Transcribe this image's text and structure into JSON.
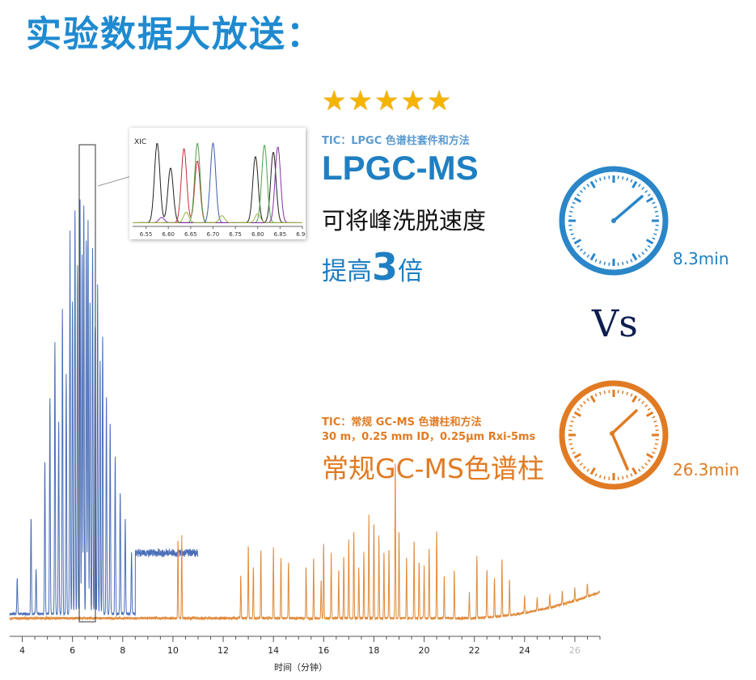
{
  "title": "实验数据大放送：",
  "rating_stars": "★★★★★",
  "lpgc": {
    "caption": "TIC：LPGC 色谱柱套件和方法",
    "heading": "LPGC-MS",
    "line1": "可将峰洗脱速度",
    "line2_prefix": "提高",
    "line2_number": "3",
    "line2_suffix": "倍",
    "time": "8.3min",
    "color": "#1f7fc2"
  },
  "vs": "Vs",
  "standard": {
    "caption1": "TIC：常规 GC-MS 色谱柱和方法",
    "caption2": "30 m，0.25 mm ID，0.25µm Rxi-5ms",
    "heading": "常规GC-MS色谱柱",
    "time": "26.3min",
    "color": "#e07b23"
  },
  "icons": [
    "star-icon",
    "clock-icon"
  ],
  "chart_data": [
    {
      "type": "line",
      "xlabel": "时间（分钟）",
      "ylabel": "",
      "xlim": [
        3.5,
        27
      ],
      "ylim": [
        0,
        100
      ],
      "x_ticks": [
        "4",
        "6",
        "8",
        "10",
        "12",
        "14",
        "16",
        "18",
        "20",
        "22",
        "24",
        "26"
      ],
      "grid": false,
      "series": [
        {
          "color": "#4a6fb8",
          "baseline": 2,
          "end": 11.0,
          "peaks": [
            [
              3.8,
              8
            ],
            [
              4.35,
              22
            ],
            [
              4.55,
              10
            ],
            [
              4.9,
              35
            ],
            [
              5.1,
              50
            ],
            [
              5.3,
              62
            ],
            [
              5.45,
              44
            ],
            [
              5.6,
              70
            ],
            [
              5.75,
              55
            ],
            [
              5.9,
              88
            ],
            [
              6.0,
              72
            ],
            [
              6.1,
              93
            ],
            [
              6.2,
              80
            ],
            [
              6.3,
              96
            ],
            [
              6.38,
              82
            ],
            [
              6.45,
              94
            ],
            [
              6.55,
              86
            ],
            [
              6.62,
              90
            ],
            [
              6.7,
              72
            ],
            [
              6.8,
              84
            ],
            [
              6.9,
              66
            ],
            [
              7.0,
              76
            ],
            [
              7.1,
              58
            ],
            [
              7.2,
              64
            ],
            [
              7.35,
              50
            ],
            [
              7.5,
              44
            ],
            [
              7.7,
              36
            ],
            [
              7.9,
              28
            ],
            [
              8.1,
              22
            ],
            [
              8.35,
              14
            ]
          ],
          "plateau_start": 8.5,
          "plateau_level": 14
        },
        {
          "color": "#e08a3a",
          "baseline": 1,
          "end": 27.0,
          "peaks": [
            [
              10.2,
              18
            ],
            [
              10.35,
              19
            ],
            [
              12.7,
              10
            ],
            [
              13.0,
              17
            ],
            [
              13.2,
              12
            ],
            [
              13.5,
              16
            ],
            [
              14.0,
              16
            ],
            [
              14.3,
              14
            ],
            [
              14.6,
              13
            ],
            [
              15.3,
              12
            ],
            [
              15.6,
              14
            ],
            [
              15.9,
              9
            ],
            [
              16.0,
              17
            ],
            [
              16.3,
              15
            ],
            [
              16.6,
              11
            ],
            [
              16.8,
              14
            ],
            [
              17.0,
              18
            ],
            [
              17.2,
              20
            ],
            [
              17.4,
              12
            ],
            [
              17.6,
              15
            ],
            [
              17.8,
              24
            ],
            [
              18.0,
              22
            ],
            [
              18.2,
              19
            ],
            [
              18.4,
              15
            ],
            [
              18.6,
              16
            ],
            [
              18.85,
              36
            ],
            [
              19.0,
              20
            ],
            [
              19.3,
              14
            ],
            [
              19.6,
              18
            ],
            [
              19.8,
              13
            ],
            [
              20.0,
              12
            ],
            [
              20.2,
              16
            ],
            [
              20.5,
              20
            ],
            [
              20.8,
              10
            ],
            [
              21.2,
              11
            ],
            [
              21.8,
              6
            ],
            [
              22.1,
              14
            ],
            [
              22.5,
              11
            ],
            [
              22.8,
              9
            ],
            [
              23.1,
              13
            ],
            [
              23.4,
              8
            ],
            [
              24.0,
              4
            ],
            [
              24.5,
              3
            ],
            [
              25.0,
              3
            ],
            [
              25.5,
              3
            ],
            [
              26.0,
              3
            ],
            [
              26.5,
              3
            ]
          ],
          "rise_start": 21.5,
          "rise_end_level": 6
        }
      ]
    },
    {
      "type": "line",
      "title": "XIC",
      "xlim": [
        6.52,
        6.9
      ],
      "ylim": [
        0,
        100
      ],
      "x_ticks": [
        "6.55",
        "6.60",
        "6.65",
        "6.70",
        "6.75",
        "6.80",
        "6.85",
        "6.90"
      ],
      "series": [
        {
          "color": "#222222",
          "peaks": [
            [
              6.575,
              90
            ],
            [
              6.605,
              62
            ],
            [
              6.795,
              75
            ],
            [
              6.835,
              80
            ]
          ]
        },
        {
          "color": "#c0303a",
          "peaks": [
            [
              6.635,
              84
            ],
            [
              6.665,
              70
            ]
          ]
        },
        {
          "color": "#4aa24a",
          "peaks": [
            [
              6.665,
              90
            ],
            [
              6.815,
              88
            ]
          ]
        },
        {
          "color": "#3e5cb0",
          "peaks": [
            [
              6.7,
              90
            ]
          ]
        },
        {
          "color": "#8a2fa8",
          "peaks": [
            [
              6.585,
              6
            ],
            [
              6.845,
              86
            ]
          ]
        },
        {
          "color": "#9bb23a",
          "peaks": [
            [
              6.64,
              12
            ],
            [
              6.72,
              8
            ],
            [
              6.8,
              10
            ]
          ]
        }
      ]
    }
  ]
}
